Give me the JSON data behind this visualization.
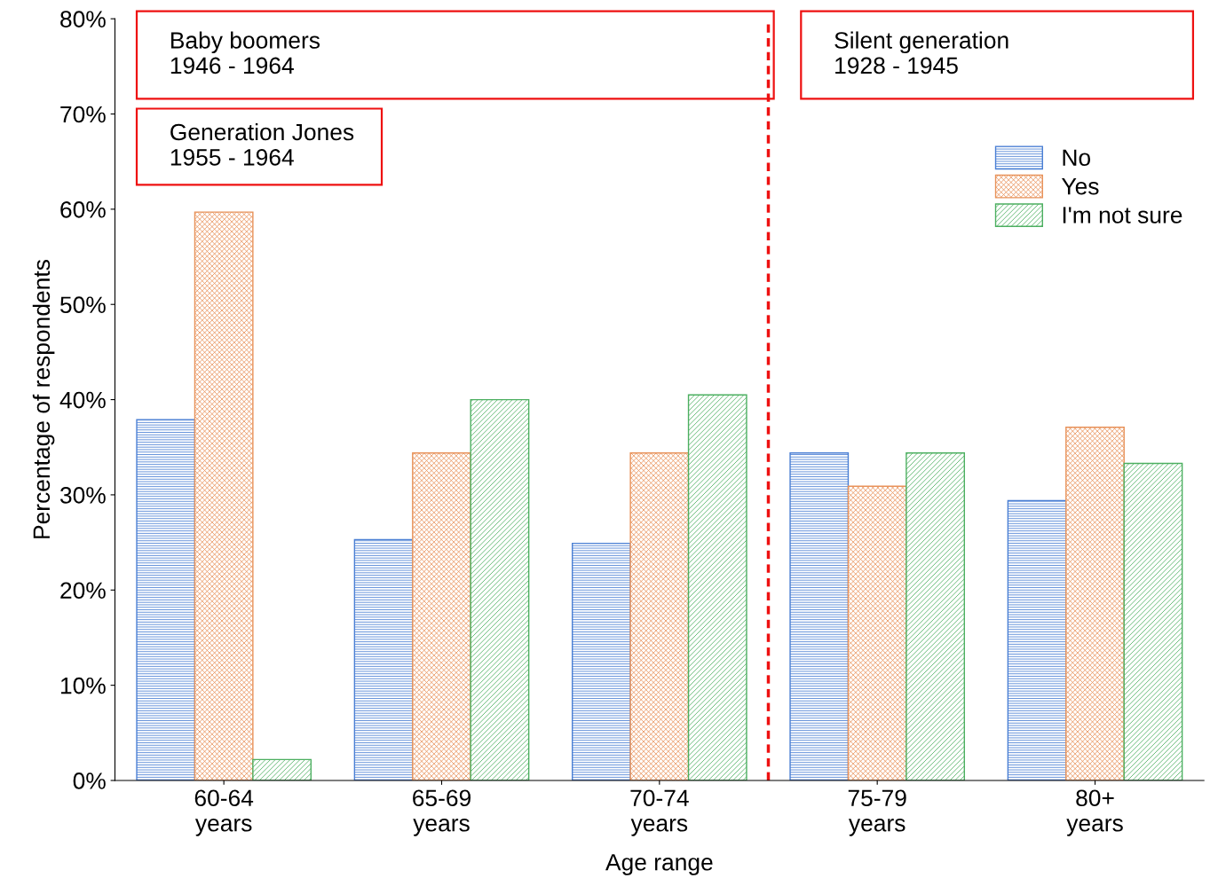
{
  "chart_data": {
    "type": "bar",
    "xlabel": "Age range",
    "ylabel": "Percentage of respondents",
    "categories": [
      "60-64\nyears",
      "65-69\nyears",
      "70-74\nyears",
      "75-79\nyears",
      "80+\nyears"
    ],
    "series": [
      {
        "name": "No",
        "color": "#4a7fd4",
        "values": [
          37.9,
          25.3,
          24.9,
          34.4,
          29.4
        ]
      },
      {
        "name": "Yes",
        "color": "#e8925a",
        "values": [
          59.7,
          34.4,
          34.4,
          30.9,
          37.1
        ]
      },
      {
        "name": "I'm not sure",
        "color": "#4caf60",
        "values": [
          2.2,
          40.0,
          40.5,
          34.4,
          33.3
        ]
      }
    ],
    "ylim": [
      0,
      80
    ],
    "yticks": [
      {
        "value": 0,
        "label": "0%"
      },
      {
        "value": 10,
        "label": "10%"
      },
      {
        "value": 20,
        "label": "20%"
      },
      {
        "value": 30,
        "label": "30%"
      },
      {
        "value": 40,
        "label": "40%"
      },
      {
        "value": 50,
        "label": "50%"
      },
      {
        "value": 60,
        "label": "60%"
      },
      {
        "value": 70,
        "label": "70%"
      },
      {
        "value": 80,
        "label": "80%"
      }
    ],
    "annotations": [
      "Baby boomers\n1946 - 1964",
      "Generation Jones\n1955 - 1964",
      "Silent generation\n1928 - 1945"
    ],
    "legend": "top right",
    "grid": false
  }
}
